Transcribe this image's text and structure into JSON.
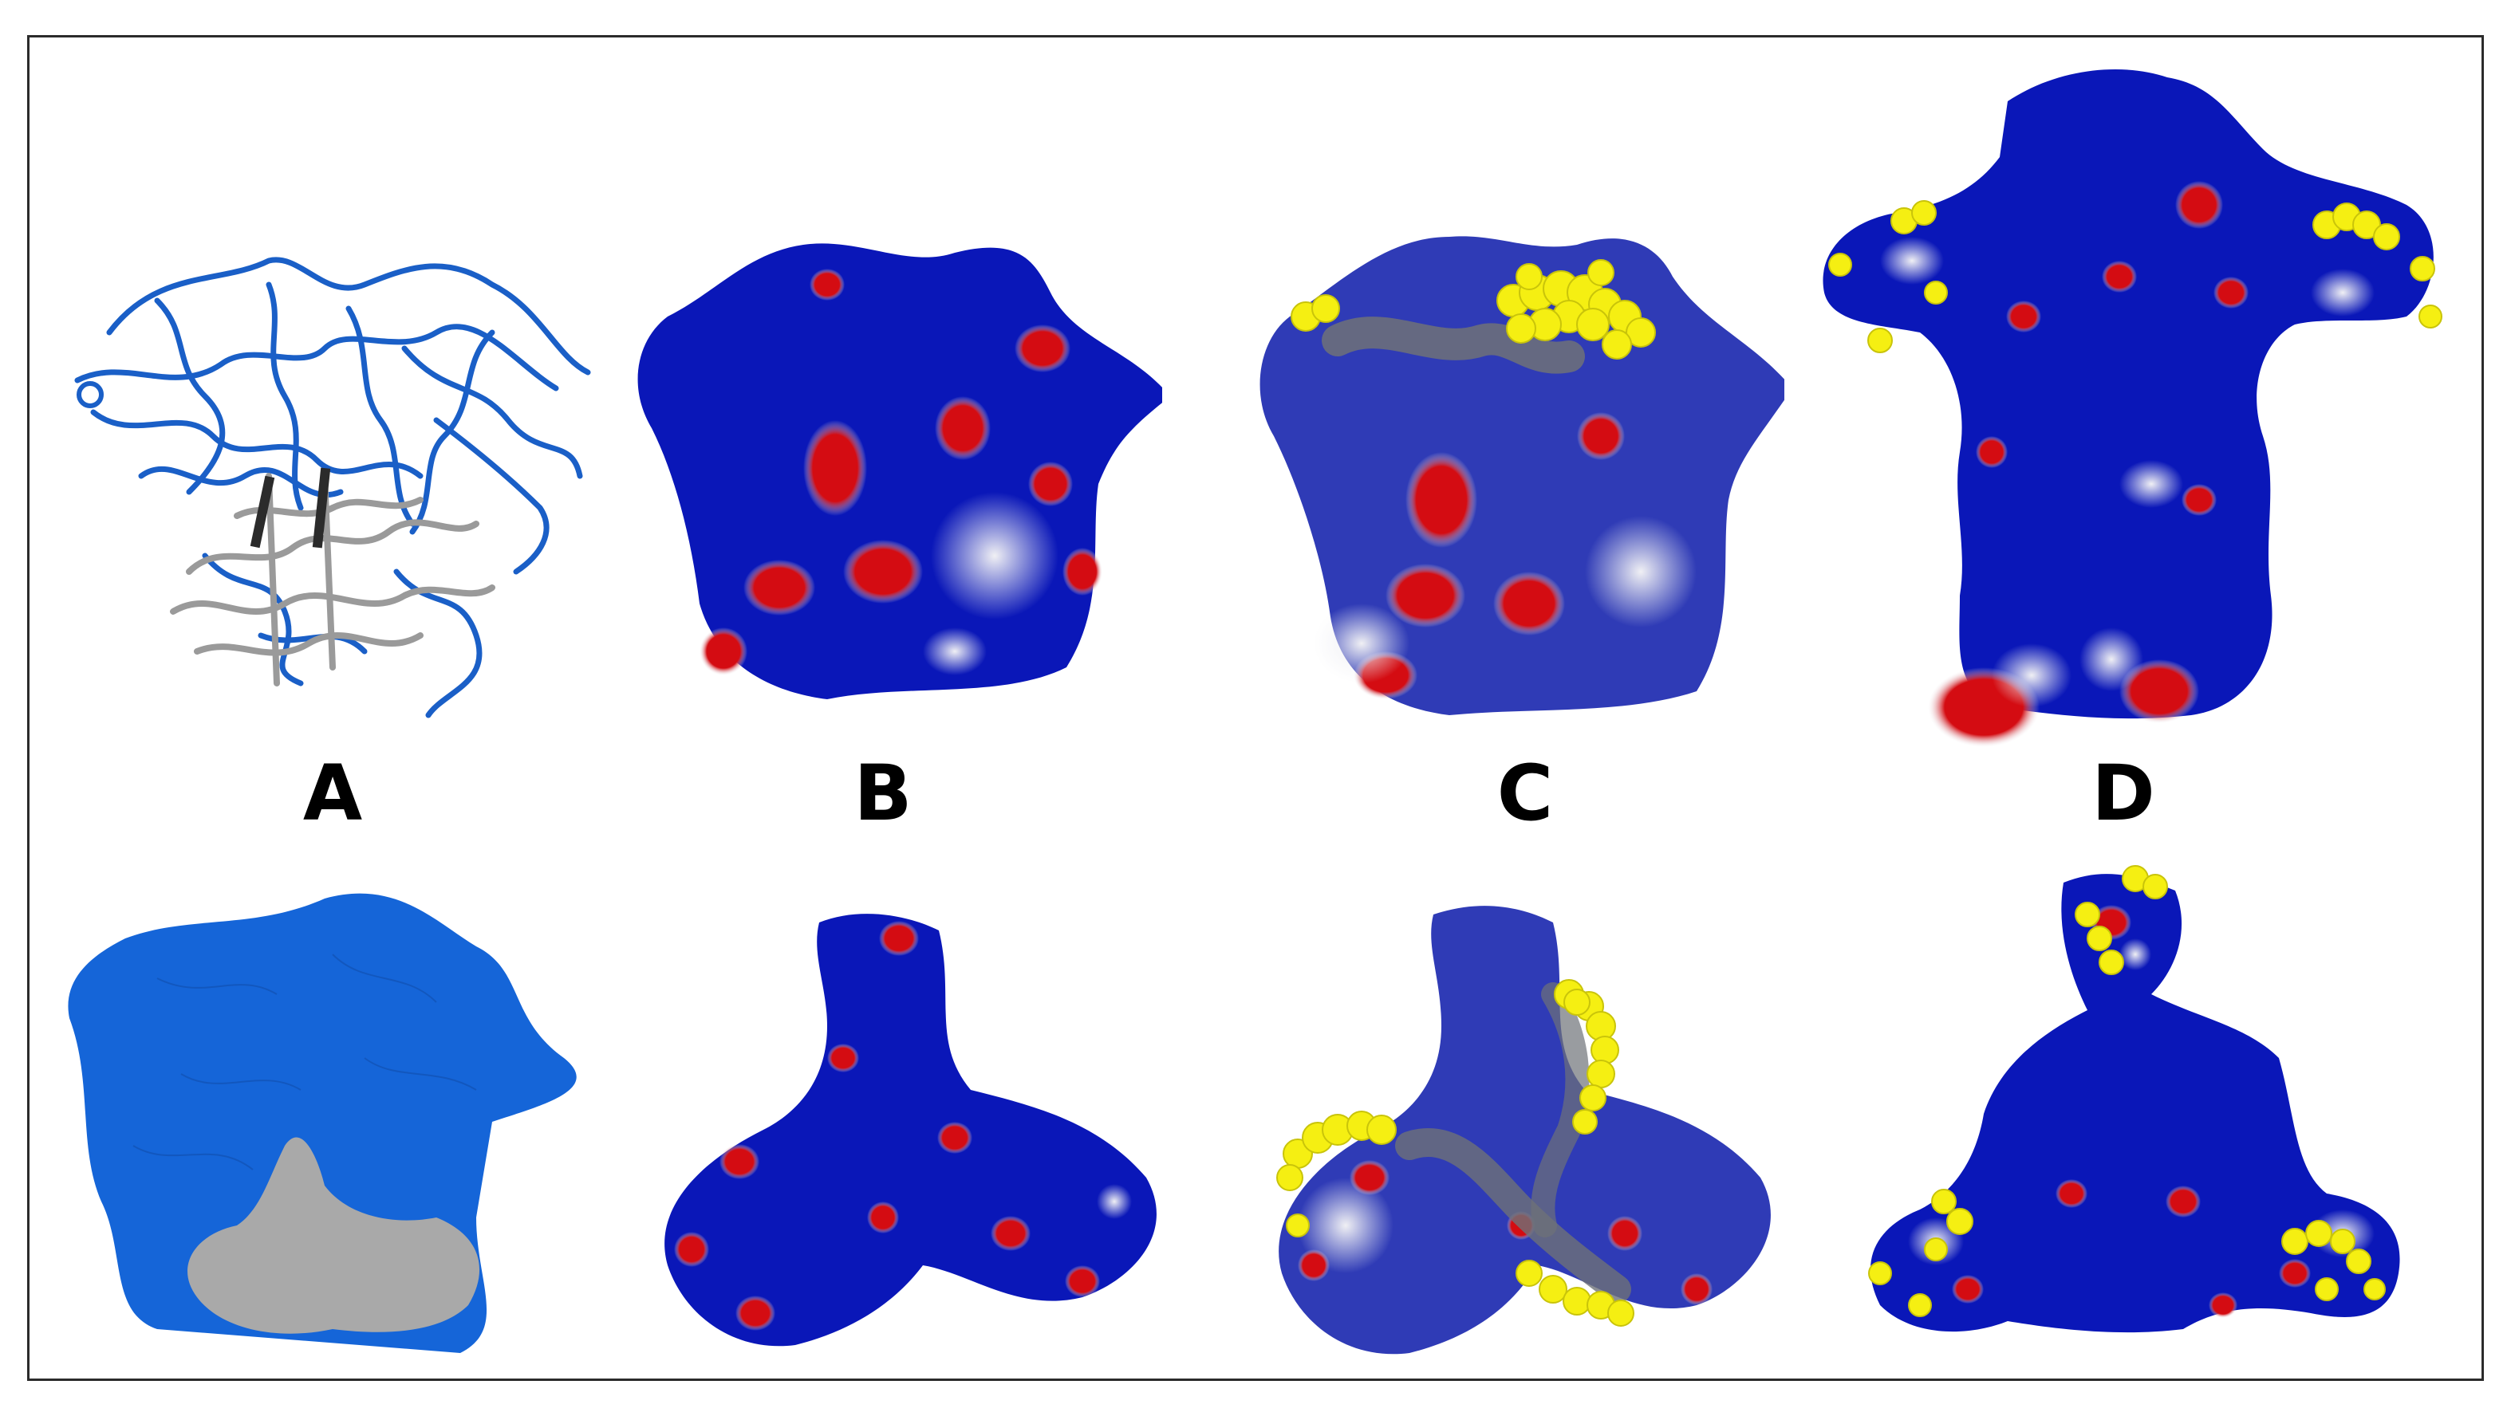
{
  "figure": {
    "labels": [
      "A",
      "B",
      "C",
      "D"
    ]
  },
  "colors": {
    "ribbon_blue": "#1a5fc7",
    "ribbon_gray": "#9a9a9a",
    "surface_blue": "#1565d8",
    "surface_gray": "#a9a9a9",
    "potential_blue": "#0a17b8",
    "potential_red": "#d40c12",
    "potential_white": "#e8e8ee",
    "highlight_yellow": "#f5ef12",
    "highlight_gray": "#6e7278"
  }
}
